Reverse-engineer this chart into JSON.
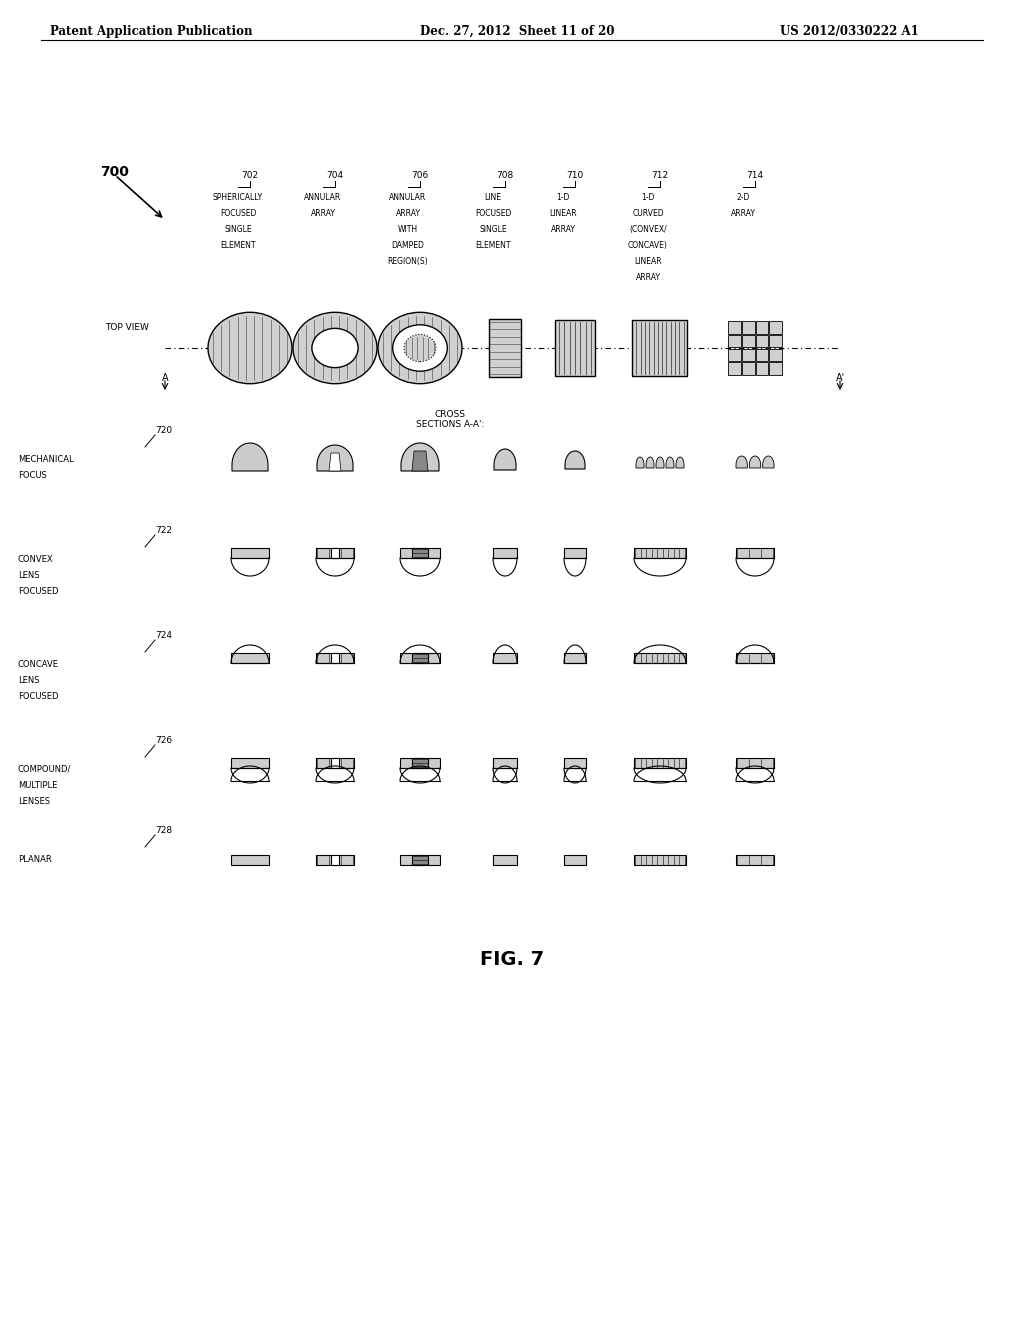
{
  "title": "FIG. 7",
  "header_left": "Patent Application Publication",
  "header_center": "Dec. 27, 2012  Sheet 11 of 20",
  "header_right": "US 2012/0330222 A1",
  "fig_label": "700",
  "background_color": "#ffffff",
  "text_color": "#000000",
  "col_labels": [
    {
      "num": "702",
      "text": "SPHERICALLY\nFOCUSED\nSINGLE\nELEMENT"
    },
    {
      "num": "704",
      "text": "ANNULAR\nARRAY"
    },
    {
      "num": "706",
      "text": "ANNULAR\nARRAY\nWITH\nDAMPED\nREGION(S)"
    },
    {
      "num": "708",
      "text": "LINE\nFOCUSED\nSINGLE\nELEMENT"
    },
    {
      "num": "710",
      "text": "1-D\nLINEAR\nARRAY"
    },
    {
      "num": "712",
      "text": "1-D\nCURVED\n(CONVEX/\nCONCAVE)\nLINEAR\nARRAY"
    },
    {
      "num": "714",
      "text": "2-D\nARRAY"
    }
  ],
  "row_labels": [
    {
      "num": "720",
      "text": "MECHANICAL\nFOCUS"
    },
    {
      "num": "722",
      "text": "CONVEX\nLENS\nFOCUSED"
    },
    {
      "num": "724",
      "text": "CONCAVE\nLENS\nFOCUSED"
    },
    {
      "num": "726",
      "text": "COMPOUND/\nMULTIPLE\nLENSES"
    },
    {
      "num": "728",
      "text": "PLANAR"
    }
  ]
}
